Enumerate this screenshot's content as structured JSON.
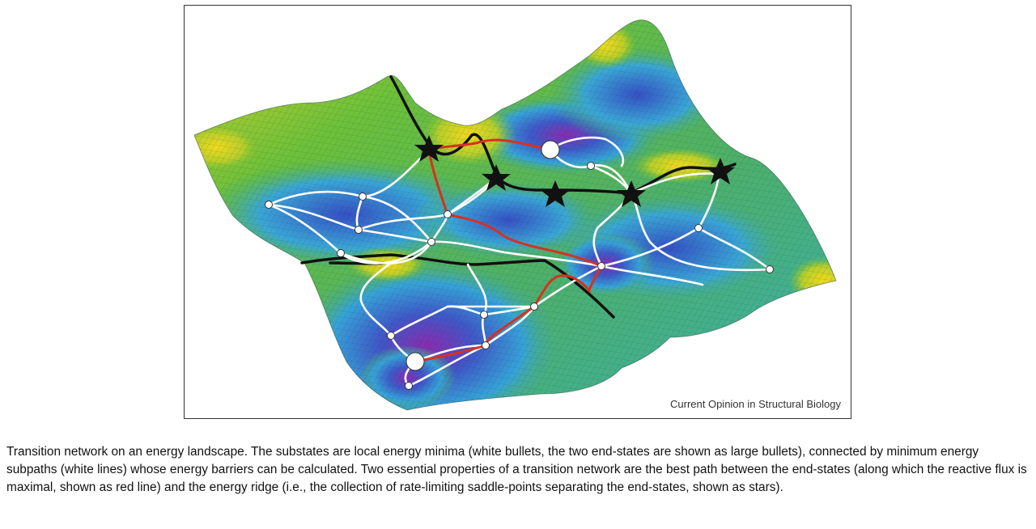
{
  "figure": {
    "source_label": "Current Opinion in Structural Biology",
    "colors": {
      "best_path": "#d9301f",
      "network_edge": "#ffffff",
      "ridge": "#111111",
      "saddle_star": "#111111",
      "landscape_low": "#7a1fa8",
      "landscape_mid": "#2f6fd0",
      "landscape_cyan": "#3bb7d6",
      "landscape_green": "#5cba3a",
      "landscape_high": "#e5d21f"
    }
  },
  "caption": "Transition network on an energy landscape. The substates are local energy minima (white bullets, the two end-states are shown as large bullets), connected by minimum energy subpaths (white lines) whose energy barriers can be calculated. Two essential properties of a transition network are the best path between the end-states (along which the reactive flux is maximal, shown as red line) and the energy ridge (i.e., the collection of rate-limiting saddle-points separating the end-states, shown as stars)."
}
